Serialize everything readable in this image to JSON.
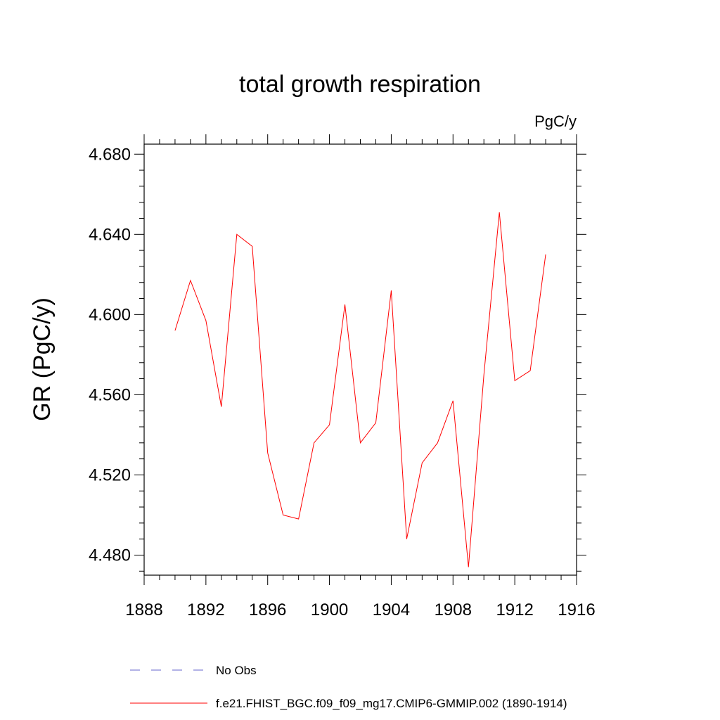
{
  "chart_data": {
    "type": "line",
    "title": "total growth respiration",
    "units_label": "PgC/y",
    "ylabel": "GR  (PgC/y)",
    "xlabel": "",
    "xlim": [
      1888,
      1916
    ],
    "ylim": [
      4.47,
      4.685
    ],
    "x_ticks": [
      1888,
      1892,
      1896,
      1900,
      1904,
      1908,
      1912,
      1916
    ],
    "x_tick_labels": [
      "1888",
      "1892",
      "1896",
      "1900",
      "1904",
      "1908",
      "1912",
      "1916"
    ],
    "y_ticks": [
      4.48,
      4.52,
      4.56,
      4.6,
      4.64,
      4.68
    ],
    "y_tick_labels": [
      "4.480",
      "4.520",
      "4.560",
      "4.600",
      "4.640",
      "4.680"
    ],
    "grid": false,
    "legend_position": "bottom",
    "series": [
      {
        "name": "No Obs",
        "color": "#6666cc",
        "style": "dashed",
        "x": [],
        "values": []
      },
      {
        "name": "f.e21.FHIST_BGC.f09_f09_mg17.CMIP6-GMMIP.002 (1890-1914)",
        "color": "#ff0000",
        "style": "solid",
        "x": [
          1890,
          1891,
          1892,
          1893,
          1894,
          1895,
          1896,
          1897,
          1898,
          1899,
          1900,
          1901,
          1902,
          1903,
          1904,
          1905,
          1906,
          1907,
          1908,
          1909,
          1910,
          1911,
          1912,
          1913,
          1914
        ],
        "values": [
          4.592,
          4.617,
          4.597,
          4.554,
          4.64,
          4.634,
          4.531,
          4.5,
          4.498,
          4.536,
          4.545,
          4.605,
          4.536,
          4.546,
          4.612,
          4.488,
          4.526,
          4.536,
          4.557,
          4.474,
          4.57,
          4.651,
          4.567,
          4.572,
          4.63
        ]
      }
    ]
  }
}
